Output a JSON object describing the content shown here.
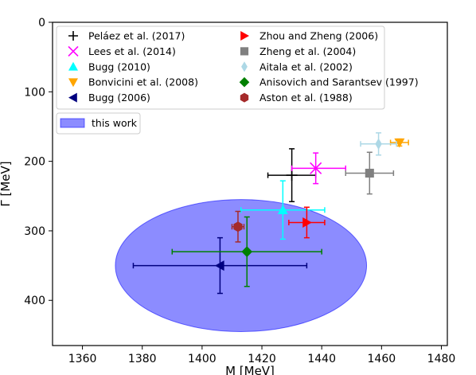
{
  "chart_data": {
    "type": "scatter",
    "xlabel": "M [MeV]",
    "ylabel": "Γ [MeV]",
    "xlim": [
      1350,
      1482
    ],
    "ylim": [
      0,
      465
    ],
    "y_inverted": true,
    "x_ticks": [
      1360,
      1380,
      1400,
      1420,
      1440,
      1460,
      1480
    ],
    "x_tick_labels": [
      "1360",
      "1380",
      "1400",
      "1420",
      "1440",
      "1460",
      "1480"
    ],
    "y_ticks": [
      0,
      100,
      200,
      300,
      400
    ],
    "y_tick_labels": [
      "0",
      "100",
      "200",
      "300",
      "400"
    ],
    "legend_placement": "top",
    "series": [
      {
        "name": "Peláez et al. (2017)",
        "marker": "plus",
        "color": "#000000",
        "x": 1430,
        "y": 220,
        "xerr": [
          8,
          8
        ],
        "yerr": [
          38,
          38
        ]
      },
      {
        "name": "Lees et al. (2014)",
        "marker": "x",
        "color": "#ff00ff",
        "x": 1438,
        "y": 210,
        "xerr": [
          8,
          10
        ],
        "yerr": [
          22,
          22
        ]
      },
      {
        "name": "Bugg (2010)",
        "marker": "triangle-up",
        "color": "#00ffff",
        "x": 1427,
        "y": 270,
        "xerr": [
          14,
          14
        ],
        "yerr": [
          42,
          42
        ]
      },
      {
        "name": "Bonvicini et al. (2008)",
        "marker": "triangle-down",
        "color": "#ffa500",
        "x": 1466,
        "y": 173,
        "xerr": [
          3,
          3
        ],
        "yerr": [
          5,
          5
        ]
      },
      {
        "name": "Bugg (2006)",
        "marker": "triangle-left",
        "color": "#00007f",
        "x": 1406,
        "y": 350,
        "xerr": [
          29,
          29
        ],
        "yerr": [
          40,
          40
        ]
      },
      {
        "name": "Zhou and Zheng (2006)",
        "marker": "triangle-right",
        "color": "#ff0000",
        "x": 1435,
        "y": 288,
        "xerr": [
          6,
          6
        ],
        "yerr": [
          22,
          22
        ]
      },
      {
        "name": "Zheng et al. (2004)",
        "marker": "square",
        "color": "#808080",
        "x": 1456,
        "y": 217,
        "xerr": [
          8,
          8
        ],
        "yerr": [
          30,
          30
        ]
      },
      {
        "name": "Aitala et al. (2002)",
        "marker": "thin-diamond",
        "color": "#add8e6",
        "x": 1459,
        "y": 175,
        "xerr": [
          6,
          6
        ],
        "yerr": [
          16,
          16
        ]
      },
      {
        "name": "Anisovich and Sarantsev (1997)",
        "marker": "diamond",
        "color": "#008000",
        "x": 1415,
        "y": 330,
        "xerr": [
          25,
          25
        ],
        "yerr": [
          50,
          50
        ]
      },
      {
        "name": "Aston et al. (1988)",
        "marker": "hexagon",
        "color": "#a52a2a",
        "x": 1412,
        "y": 294,
        "xerr": [
          2,
          2
        ],
        "yerr": [
          22,
          22
        ]
      }
    ],
    "region": {
      "name": "this work",
      "color": "#0000ff",
      "opacity": 0.45,
      "center_x": 1413,
      "center_y": 350,
      "semi_x": 42,
      "semi_y": 95
    }
  }
}
